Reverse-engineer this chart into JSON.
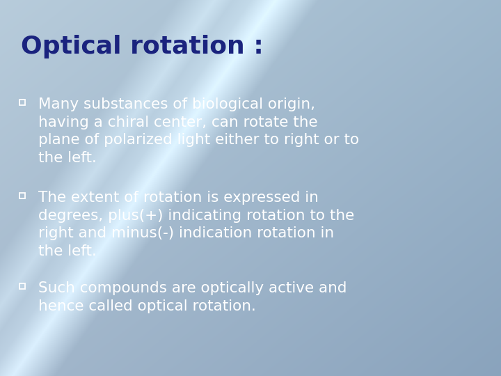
{
  "title": "Optical rotation :",
  "title_color": "#1a237e",
  "title_fontsize": 26,
  "bullet_color": "#ffffff",
  "bullet_fontsize": 15.5,
  "bullet_marker_color": "#ffffff",
  "bullets": [
    "Many substances of biological origin,\nhaving a chiral center, can rotate the\nplane of polarized light either to right or to\nthe left.",
    "The extent of rotation is expressed in\ndegrees, plus(+) indicating rotation to the\nright and minus(-) indication rotation in\nthe left.",
    "Such compounds are optically active and\nhence called optical rotation."
  ],
  "fig_width": 7.2,
  "fig_height": 5.4,
  "dpi": 100
}
